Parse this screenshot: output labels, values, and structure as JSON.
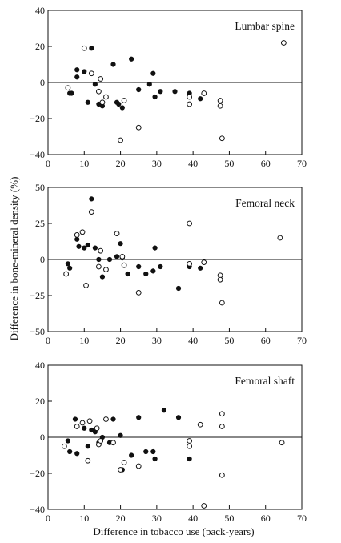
{
  "chart_data": {
    "type": "scatter",
    "xlabel": "Difference in tobacco use (pack-years)",
    "ylabel": "Difference in bone-mineral density (%)",
    "xlim": [
      0,
      70
    ],
    "xticks": [
      0,
      10,
      20,
      30,
      40,
      50,
      60,
      70
    ],
    "grid": false,
    "panels": [
      {
        "title": "Lumbar spine",
        "ylim": [
          -40,
          40
        ],
        "yticks": [
          -40,
          -20,
          0,
          20,
          40
        ],
        "series": [
          {
            "marker": "filled",
            "points": [
              [
                6,
                -6
              ],
              [
                6.5,
                -6
              ],
              [
                8,
                7
              ],
              [
                8,
                3
              ],
              [
                10,
                6
              ],
              [
                11,
                -11
              ],
              [
                12,
                19
              ],
              [
                13,
                -1
              ],
              [
                14,
                -12
              ],
              [
                15,
                -13
              ],
              [
                18,
                10
              ],
              [
                19,
                -11
              ],
              [
                19.5,
                -12
              ],
              [
                20.5,
                -14
              ],
              [
                23,
                13
              ],
              [
                25,
                -4
              ],
              [
                28,
                -1
              ],
              [
                29,
                5
              ],
              [
                29.5,
                -8
              ],
              [
                31,
                -5
              ],
              [
                35,
                -5
              ],
              [
                39,
                -6
              ],
              [
                42,
                -9
              ]
            ]
          },
          {
            "marker": "open",
            "points": [
              [
                5.5,
                -3
              ],
              [
                10,
                19
              ],
              [
                12,
                5
              ],
              [
                14,
                -5
              ],
              [
                14.5,
                2
              ],
              [
                15,
                -11
              ],
              [
                16,
                -8
              ],
              [
                20,
                -32
              ],
              [
                21,
                -10
              ],
              [
                25,
                -25
              ],
              [
                39,
                -8
              ],
              [
                39,
                -12
              ],
              [
                43,
                -6
              ],
              [
                47.5,
                -10
              ],
              [
                47.5,
                -13
              ],
              [
                48,
                -31
              ],
              [
                65,
                22
              ]
            ]
          }
        ]
      },
      {
        "title": "Femoral neck",
        "ylim": [
          -50,
          50
        ],
        "yticks": [
          -50,
          -25,
          0,
          25,
          50
        ],
        "series": [
          {
            "marker": "filled",
            "points": [
              [
                5.5,
                -3
              ],
              [
                6,
                -6
              ],
              [
                8,
                14
              ],
              [
                8.5,
                9
              ],
              [
                10,
                8
              ],
              [
                11,
                10
              ],
              [
                12,
                42
              ],
              [
                13,
                8
              ],
              [
                14,
                0
              ],
              [
                15,
                -12
              ],
              [
                17,
                0
              ],
              [
                19,
                2
              ],
              [
                20,
                11
              ],
              [
                20.5,
                1
              ],
              [
                22,
                -10
              ],
              [
                25,
                -5
              ],
              [
                27,
                -10
              ],
              [
                29,
                -8
              ],
              [
                29.5,
                8
              ],
              [
                31,
                -5
              ],
              [
                36,
                -20
              ],
              [
                39,
                -5
              ],
              [
                42,
                -6
              ]
            ]
          },
          {
            "marker": "open",
            "points": [
              [
                5,
                -10
              ],
              [
                8,
                17
              ],
              [
                9.5,
                19
              ],
              [
                10.5,
                -18
              ],
              [
                12,
                33
              ],
              [
                14,
                -5
              ],
              [
                14.5,
                6
              ],
              [
                16,
                -7
              ],
              [
                19,
                18
              ],
              [
                20.5,
                2
              ],
              [
                21,
                -4
              ],
              [
                25,
                -23
              ],
              [
                39,
                25
              ],
              [
                39,
                -3
              ],
              [
                43,
                -2
              ],
              [
                47.5,
                -11
              ],
              [
                47.5,
                -14
              ],
              [
                48,
                -30
              ],
              [
                64,
                15
              ]
            ]
          }
        ]
      },
      {
        "title": "Femoral shaft",
        "ylim": [
          -40,
          40
        ],
        "yticks": [
          -40,
          -20,
          0,
          20,
          40
        ],
        "series": [
          {
            "marker": "filled",
            "points": [
              [
                5.5,
                -2
              ],
              [
                6,
                -8
              ],
              [
                7.5,
                10
              ],
              [
                8,
                -9
              ],
              [
                10,
                5
              ],
              [
                11,
                -5
              ],
              [
                12,
                4
              ],
              [
                13,
                3
              ],
              [
                14,
                -3
              ],
              [
                15,
                0
              ],
              [
                17,
                -3
              ],
              [
                18,
                10
              ],
              [
                20,
                1
              ],
              [
                20.5,
                -18
              ],
              [
                23,
                -10
              ],
              [
                25,
                11
              ],
              [
                27,
                -8
              ],
              [
                29,
                -8
              ],
              [
                29.5,
                -12
              ],
              [
                32,
                15
              ],
              [
                36,
                11
              ],
              [
                39,
                -12
              ]
            ]
          },
          {
            "marker": "open",
            "points": [
              [
                4.5,
                -5
              ],
              [
                8,
                6
              ],
              [
                9.5,
                8
              ],
              [
                11,
                -13
              ],
              [
                11.5,
                9
              ],
              [
                13.5,
                5
              ],
              [
                14,
                -4
              ],
              [
                14.5,
                -2
              ],
              [
                16,
                10
              ],
              [
                18,
                -3
              ],
              [
                20,
                -18
              ],
              [
                21,
                -14
              ],
              [
                25,
                -16
              ],
              [
                39,
                -2
              ],
              [
                39,
                -5
              ],
              [
                42,
                7
              ],
              [
                43,
                -38
              ],
              [
                48,
                13
              ],
              [
                48,
                6
              ],
              [
                48,
                -21
              ],
              [
                64.5,
                -3
              ]
            ]
          }
        ]
      }
    ]
  }
}
